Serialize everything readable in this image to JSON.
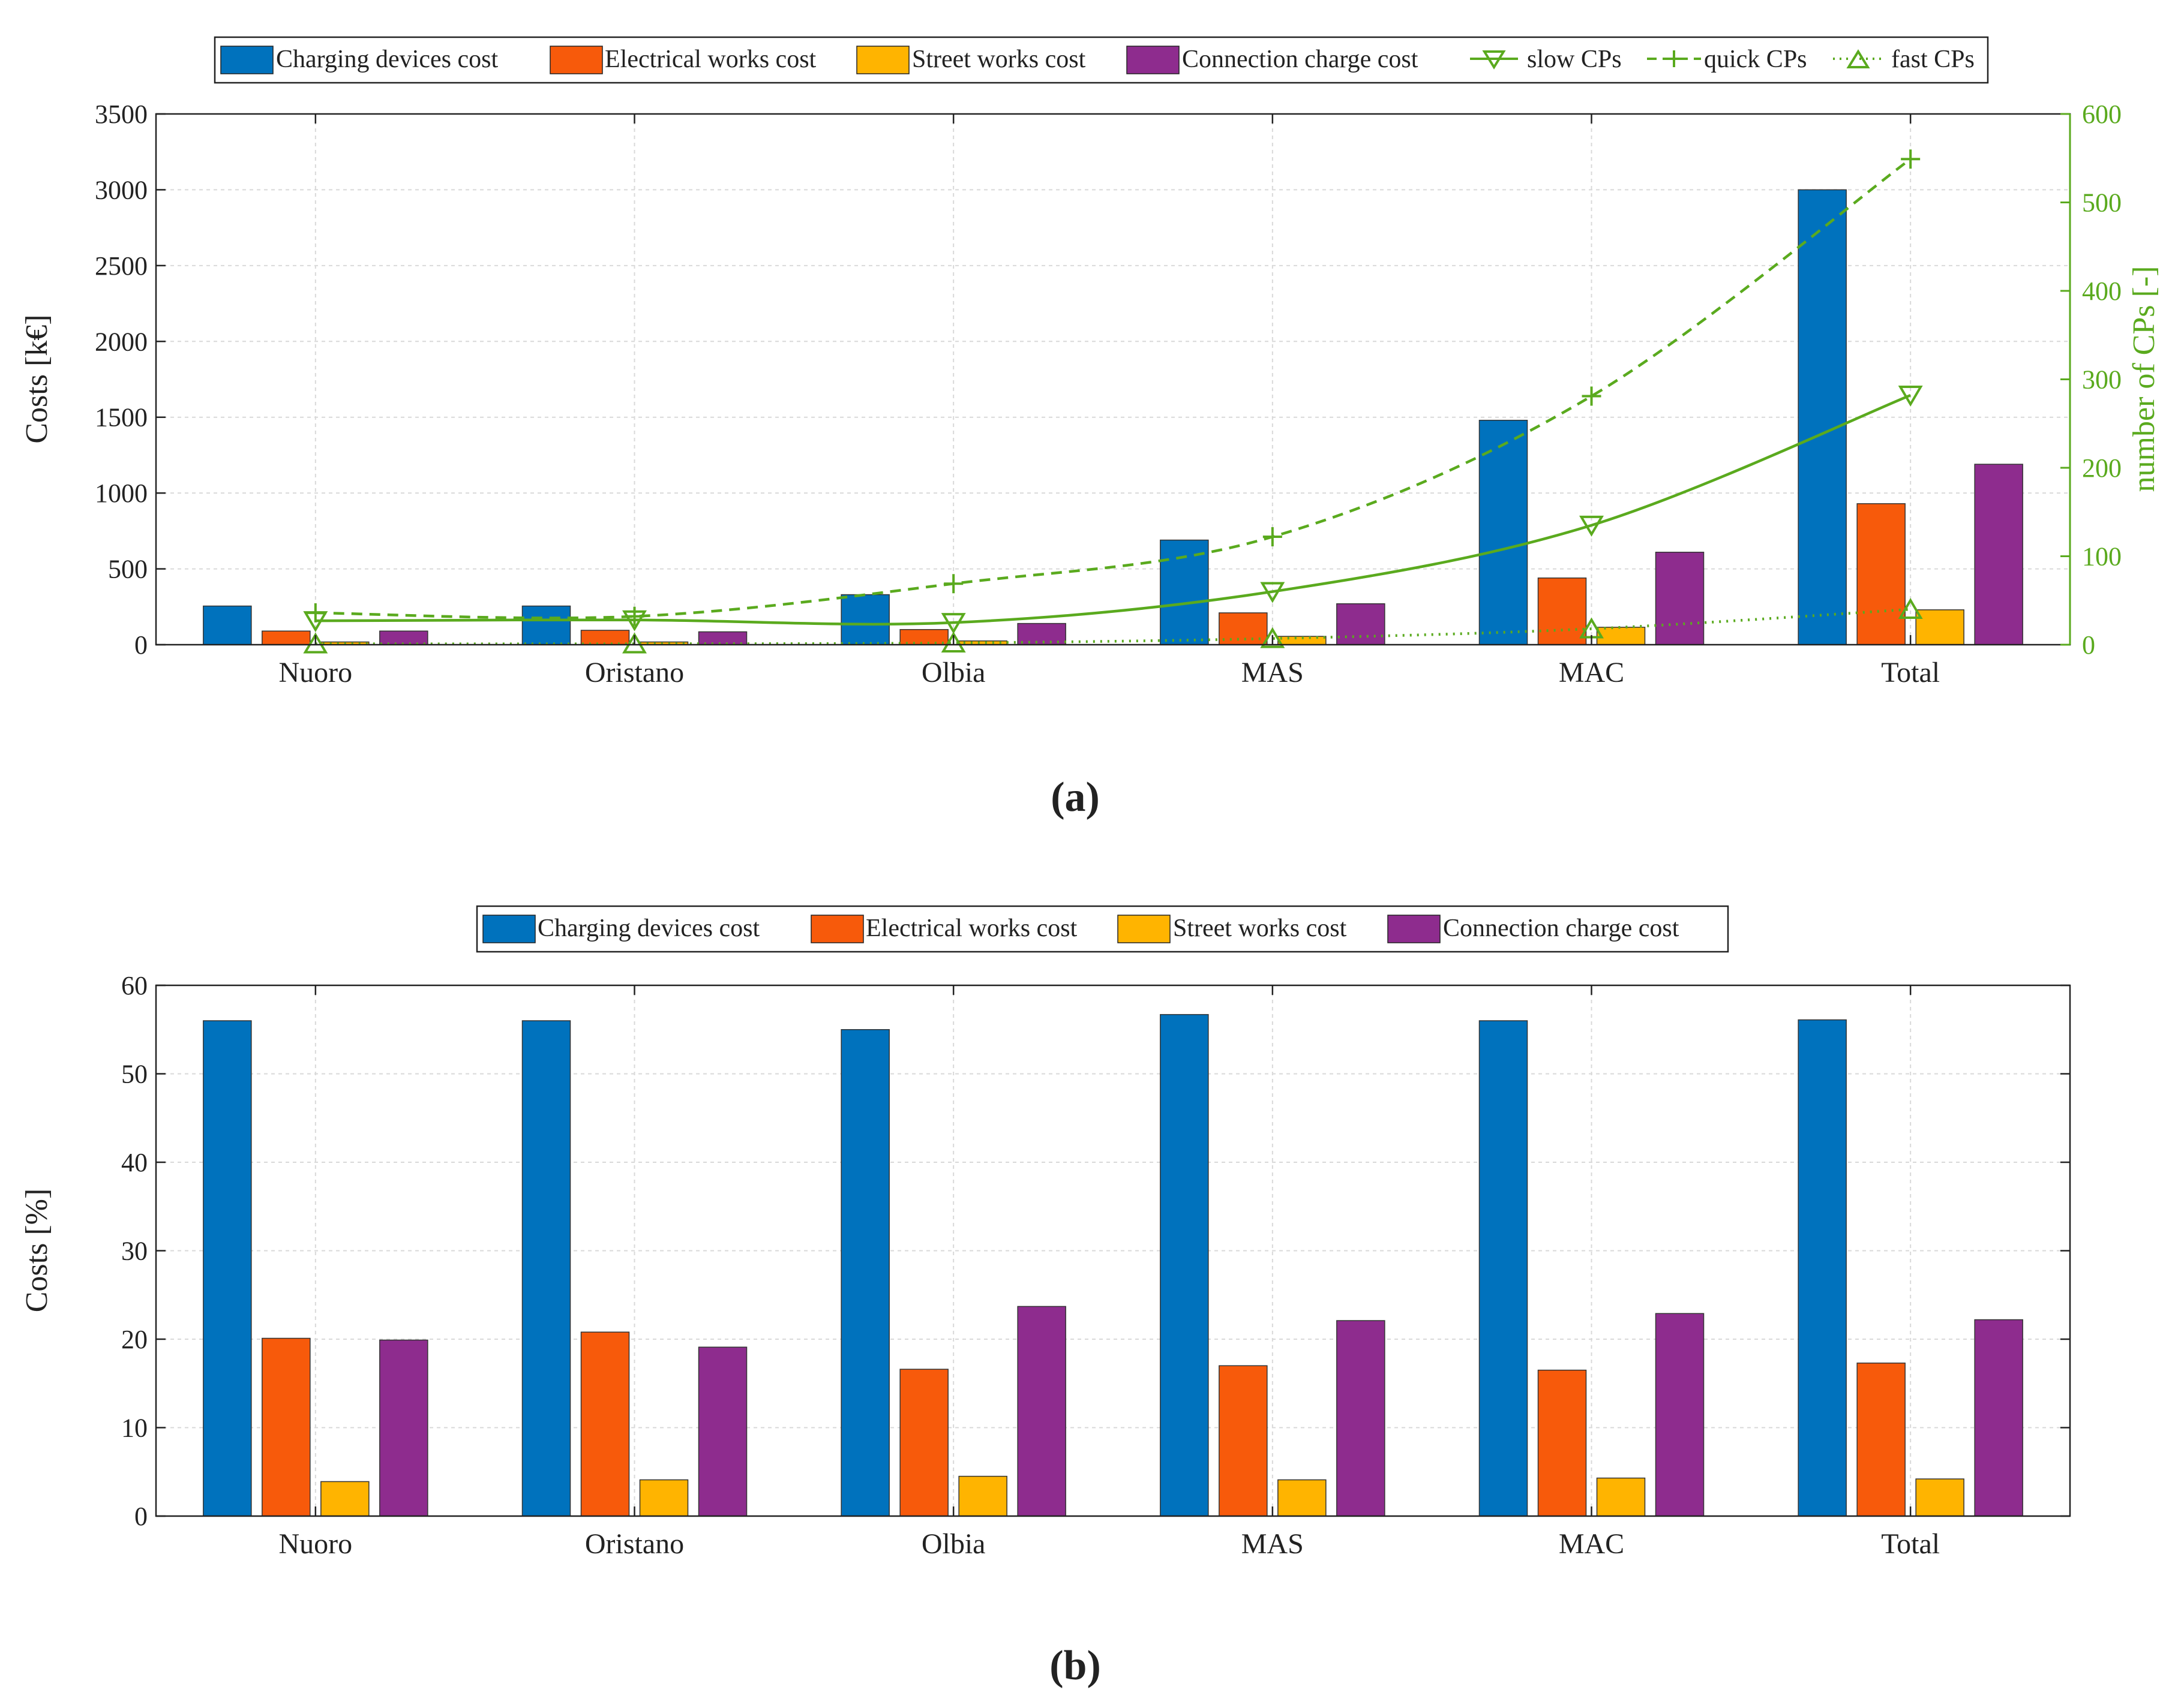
{
  "colors": {
    "charging": "#0072BD",
    "electrical": "#F75A0B",
    "street": "#FFB400",
    "connection": "#8E2C8E",
    "cps": "#5AAA1E"
  },
  "chart_data": [
    {
      "type": "bar",
      "panel_label": "(a)",
      "categories": [
        "Nuoro",
        "Oristano",
        "Olbia",
        "MAS",
        "MAC",
        "Total"
      ],
      "ylabel": "Costs [k€]",
      "ylim": [
        0,
        3500
      ],
      "yticks": [
        0,
        500,
        1000,
        1500,
        2000,
        2500,
        3000,
        3500
      ],
      "y2label": "number of CPs [-]",
      "y2lim": [
        0,
        600
      ],
      "y2ticks": [
        0,
        100,
        200,
        300,
        400,
        500,
        600
      ],
      "grid": true,
      "legend_position": "top-center",
      "series": [
        {
          "name": "Charging devices cost",
          "color_key": "charging",
          "values": [
            255,
            255,
            330,
            690,
            1480,
            3000
          ]
        },
        {
          "name": "Electrical works cost",
          "color_key": "electrical",
          "values": [
            90,
            95,
            100,
            210,
            440,
            930
          ]
        },
        {
          "name": "Street works cost",
          "color_key": "street",
          "values": [
            18,
            18,
            25,
            55,
            115,
            230
          ]
        },
        {
          "name": "Connection charge cost",
          "color_key": "connection",
          "values": [
            90,
            85,
            140,
            270,
            610,
            1190
          ]
        }
      ],
      "lines": [
        {
          "name": "slow CPs",
          "style": "solid",
          "marker": "triangle-down",
          "axis": "right",
          "values": [
            27,
            28,
            25,
            60,
            135,
            282
          ]
        },
        {
          "name": "quick CPs",
          "style": "dashed",
          "marker": "plus",
          "axis": "right",
          "values": [
            36,
            32,
            69,
            122,
            281,
            549
          ]
        },
        {
          "name": "fast CPs",
          "style": "dotted",
          "marker": "triangle-up",
          "axis": "right",
          "values": [
            1,
            1,
            2,
            7,
            18,
            40
          ]
        }
      ]
    },
    {
      "type": "bar",
      "panel_label": "(b)",
      "categories": [
        "Nuoro",
        "Oristano",
        "Olbia",
        "MAS",
        "MAC",
        "Total"
      ],
      "ylabel": "Costs [%]",
      "ylim": [
        0,
        60
      ],
      "yticks": [
        0,
        10,
        20,
        30,
        40,
        50,
        60
      ],
      "grid": true,
      "legend_position": "top-center",
      "series": [
        {
          "name": "Charging devices cost",
          "color_key": "charging",
          "values": [
            56.0,
            56.0,
            55.0,
            56.7,
            56.0,
            56.1
          ]
        },
        {
          "name": "Electrical works cost",
          "color_key": "electrical",
          "values": [
            20.1,
            20.8,
            16.6,
            17.0,
            16.5,
            17.3
          ]
        },
        {
          "name": "Street works cost",
          "color_key": "street",
          "values": [
            3.9,
            4.1,
            4.5,
            4.1,
            4.3,
            4.2
          ]
        },
        {
          "name": "Connection charge cost",
          "color_key": "connection",
          "values": [
            19.9,
            19.1,
            23.7,
            22.1,
            22.9,
            22.2
          ]
        }
      ]
    }
  ]
}
